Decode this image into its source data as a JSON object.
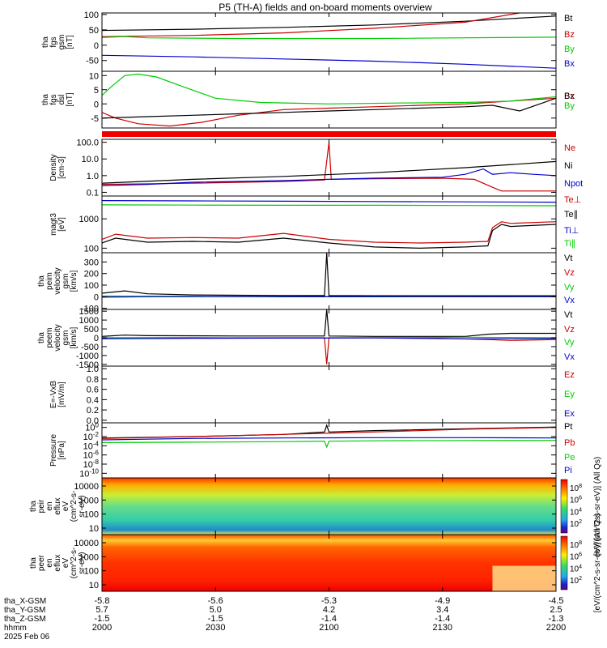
{
  "title": "P5 (TH-A) fields and on-board moments overview",
  "chart_data": [
    {
      "type": "line",
      "id": "fgs_gsm",
      "ylabel": [
        "tha",
        "fgs",
        "gsm",
        "[nT]"
      ],
      "yticks": [
        100,
        50,
        0,
        -50
      ],
      "ylim": [
        -85,
        105
      ],
      "log": false,
      "series": [
        {
          "name": "Bt",
          "color": "#000000",
          "x": [
            0,
            0.2,
            0.4,
            0.6,
            0.8,
            1.0
          ],
          "y": [
            48,
            52,
            58,
            66,
            78,
            95
          ]
        },
        {
          "name": "Bz",
          "color": "#cc0000",
          "x": [
            0,
            0.2,
            0.4,
            0.6,
            0.8,
            0.92
          ],
          "y": [
            28,
            32,
            40,
            55,
            75,
            105
          ]
        },
        {
          "name": "By",
          "color": "#00cc00",
          "x": [
            0,
            0.05,
            0.1,
            0.3,
            0.6,
            1.0
          ],
          "y": [
            25,
            28,
            24,
            22,
            22,
            26
          ]
        },
        {
          "name": "Bx",
          "color": "#0000cc",
          "x": [
            0,
            0.2,
            0.4,
            0.6,
            0.8,
            1.0
          ],
          "y": [
            -33,
            -38,
            -45,
            -52,
            -62,
            -75
          ]
        }
      ]
    },
    {
      "type": "line",
      "id": "fgs_dsl",
      "ylabel": [
        "tha",
        "fgs",
        "dsl",
        "[nT]"
      ],
      "yticks": [
        10,
        5,
        0,
        -5
      ],
      "ylim": [
        -8.5,
        11.5
      ],
      "log": false,
      "series": [
        {
          "name": "Bz",
          "color": "#cc0000",
          "x": [
            0,
            0.03,
            0.08,
            0.15,
            0.22,
            0.3,
            0.4,
            0.5,
            0.6,
            0.7,
            0.8,
            0.9,
            1.0
          ],
          "y": [
            -3,
            -5,
            -7,
            -7.8,
            -6.5,
            -4,
            -2,
            -1.5,
            -1,
            -0.5,
            0,
            1,
            2
          ]
        },
        {
          "name": "By",
          "color": "#00cc00",
          "x": [
            0,
            0.02,
            0.05,
            0.08,
            0.12,
            0.18,
            0.25,
            0.35,
            0.5,
            0.65,
            0.8,
            0.9,
            1.0
          ],
          "y": [
            3,
            6,
            10,
            10.5,
            9.5,
            6,
            2,
            0.5,
            0,
            0.3,
            0.5,
            1,
            2.5
          ]
        },
        {
          "name": "Bx",
          "color": "#000000",
          "x": [
            0,
            0.1,
            0.2,
            0.3,
            0.4,
            0.5,
            0.6,
            0.7,
            0.8,
            0.86,
            0.92,
            1.0
          ],
          "y": [
            -5,
            -4.5,
            -4,
            -3.5,
            -3,
            -2.5,
            -2,
            -1.5,
            -1,
            -0.5,
            -2.5,
            2
          ]
        }
      ]
    },
    {
      "type": "line",
      "id": "density",
      "ylabel": [
        "Density",
        "[cm-3]"
      ],
      "yticks": [
        "100.0",
        "10.0",
        "1.0",
        "0.1"
      ],
      "ytick_values": [
        100,
        10,
        1,
        0.1
      ],
      "ylim": [
        0.06,
        150
      ],
      "log": true,
      "series": [
        {
          "name": "Ne",
          "color": "#cc0000",
          "x": [
            0,
            0.2,
            0.4,
            0.49,
            0.5,
            0.505,
            0.6,
            0.75,
            0.82,
            0.86,
            0.88,
            1.0
          ],
          "y": [
            0.3,
            0.35,
            0.45,
            0.55,
            100,
            0.6,
            0.65,
            0.7,
            0.6,
            0.2,
            0.12,
            0.12
          ]
        },
        {
          "name": "Ni",
          "color": "#000000",
          "x": [
            0,
            0.2,
            0.4,
            0.6,
            0.8,
            1.0
          ],
          "y": [
            0.35,
            0.6,
            0.9,
            1.5,
            3,
            7
          ]
        },
        {
          "name": "Npot",
          "color": "#0000cc",
          "x": [
            0,
            0.1,
            0.2,
            0.4,
            0.5,
            0.6,
            0.75,
            0.8,
            0.84,
            0.86,
            0.9,
            0.95,
            1.0
          ],
          "y": [
            0.25,
            0.3,
            0.4,
            0.5,
            0.6,
            0.7,
            0.8,
            1.2,
            2.5,
            1.2,
            1.5,
            1.2,
            1.0
          ]
        }
      ]
    },
    {
      "type": "line",
      "id": "temperature",
      "ylabel": [
        "magt3",
        "[eV]"
      ],
      "yticks": [
        "1000",
        "100"
      ],
      "ytick_values": [
        1000,
        100
      ],
      "ylim": [
        70,
        6000
      ],
      "log": true,
      "series": [
        {
          "name": "Te⊥",
          "color": "#cc0000",
          "x": [
            0,
            0.03,
            0.1,
            0.2,
            0.3,
            0.4,
            0.5,
            0.6,
            0.7,
            0.8,
            0.85,
            0.86,
            0.88,
            0.9,
            1.0
          ],
          "y": [
            200,
            300,
            220,
            230,
            220,
            320,
            200,
            160,
            150,
            160,
            170,
            500,
            800,
            700,
            800
          ]
        },
        {
          "name": "Te∥",
          "color": "#000000",
          "x": [
            0,
            0.03,
            0.1,
            0.2,
            0.3,
            0.4,
            0.5,
            0.6,
            0.7,
            0.8,
            0.85,
            0.86,
            0.88,
            0.9,
            1.0
          ],
          "y": [
            150,
            220,
            160,
            170,
            160,
            220,
            150,
            110,
            100,
            110,
            120,
            400,
            650,
            550,
            650
          ]
        },
        {
          "name": "Ti⊥",
          "color": "#0000cc",
          "x": [
            0,
            0.2,
            0.4,
            0.6,
            0.8,
            1.0
          ],
          "y": [
            4200,
            4100,
            4000,
            3900,
            3800,
            3700
          ]
        },
        {
          "name": "Ti∥",
          "color": "#00cc00",
          "x": [
            0,
            0.2,
            0.4,
            0.6,
            0.8,
            1.0
          ],
          "y": [
            3000,
            2950,
            2900,
            2900,
            2850,
            2800
          ]
        }
      ]
    },
    {
      "type": "line",
      "id": "peim_velocity",
      "ylabel": [
        "tha",
        "peim",
        "velocity",
        "gsm",
        "[km/s]"
      ],
      "yticks": [
        300,
        200,
        100,
        0,
        -100
      ],
      "ylim": [
        -110,
        380
      ],
      "log": false,
      "series": [
        {
          "name": "Vt",
          "color": "#000000",
          "x": [
            0,
            0.05,
            0.1,
            0.2,
            0.4,
            0.49,
            0.495,
            0.5,
            0.6,
            0.8,
            1.0
          ],
          "y": [
            30,
            50,
            25,
            15,
            10,
            10,
            380,
            10,
            8,
            8,
            8
          ]
        },
        {
          "name": "Vz",
          "color": "#cc0000",
          "x": [
            0,
            0.1,
            0.3,
            0.5,
            0.7,
            1.0
          ],
          "y": [
            -5,
            0,
            2,
            0,
            2,
            0
          ]
        },
        {
          "name": "Vy",
          "color": "#00cc00",
          "x": [
            0,
            0.2,
            0.4,
            0.6,
            0.8,
            1.0
          ],
          "y": [
            -2,
            0,
            1,
            -1,
            0,
            0
          ]
        },
        {
          "name": "Vx",
          "color": "#0000cc",
          "x": [
            0,
            0.2,
            0.4,
            0.6,
            0.8,
            1.0
          ],
          "y": [
            3,
            2,
            0,
            1,
            0,
            0
          ]
        }
      ]
    },
    {
      "type": "line",
      "id": "peem_velocity",
      "ylabel": [
        "tha",
        "peem",
        "velocity",
        "gsm",
        "[km/s]"
      ],
      "yticks": [
        1500,
        1000,
        500,
        0,
        -500,
        -1000,
        -1500
      ],
      "ylim": [
        -1600,
        1600
      ],
      "log": false,
      "series": [
        {
          "name": "Vt",
          "color": "#000000",
          "x": [
            0,
            0.05,
            0.1,
            0.3,
            0.49,
            0.495,
            0.5,
            0.6,
            0.8,
            0.85,
            0.9,
            1.0
          ],
          "y": [
            80,
            150,
            120,
            100,
            100,
            1600,
            100,
            80,
            80,
            200,
            250,
            250
          ]
        },
        {
          "name": "Vz",
          "color": "#cc0000",
          "x": [
            0,
            0.1,
            0.3,
            0.49,
            0.495,
            0.5,
            0.7,
            0.85,
            0.9,
            1.0
          ],
          "y": [
            0,
            -40,
            0,
            0,
            -1500,
            0,
            0,
            -100,
            -150,
            -100
          ]
        },
        {
          "name": "Vy",
          "color": "#00cc00",
          "x": [
            0,
            0.2,
            0.4,
            0.6,
            0.8,
            1.0
          ],
          "y": [
            0,
            20,
            -20,
            0,
            30,
            0
          ]
        },
        {
          "name": "Vx",
          "color": "#0000cc",
          "x": [
            0,
            0.2,
            0.4,
            0.6,
            0.8,
            1.0
          ],
          "y": [
            -50,
            -30,
            -20,
            -10,
            -60,
            -40
          ]
        }
      ]
    },
    {
      "type": "line",
      "id": "efield",
      "ylabel": [
        "E=-VxB",
        "[mV/m]"
      ],
      "yticks": [
        "1.0",
        "0.8",
        "0.6",
        "0.4",
        "0.2",
        "0.0"
      ],
      "ytick_values": [
        1.0,
        0.8,
        0.6,
        0.4,
        0.2,
        0.0
      ],
      "ylim": [
        -0.05,
        1.05
      ],
      "log": false,
      "series": [
        {
          "name": "Ez",
          "color": "#cc0000",
          "x": [],
          "y": []
        },
        {
          "name": "Ey",
          "color": "#00cc00",
          "x": [],
          "y": []
        },
        {
          "name": "Ex",
          "color": "#0000cc",
          "x": [],
          "y": []
        }
      ]
    },
    {
      "type": "line",
      "id": "pressure",
      "ylabel": [
        "Pressure",
        "[nPa]"
      ],
      "yticks": [
        "10^0",
        "10^-2",
        "10^-4",
        "10^-6",
        "10^-8",
        "10^-10"
      ],
      "ytick_values": [
        1,
        0.01,
        0.0001,
        1e-06,
        1e-08,
        1e-10
      ],
      "ylim": [
        1e-11,
        10
      ],
      "log": true,
      "series": [
        {
          "name": "Pt",
          "color": "#000000",
          "x": [
            0,
            0.2,
            0.4,
            0.49,
            0.495,
            0.5,
            0.6,
            0.8,
            1.0
          ],
          "y": [
            0.005,
            0.01,
            0.03,
            0.1,
            3,
            0.1,
            0.2,
            0.5,
            1.2
          ]
        },
        {
          "name": "Pb",
          "color": "#cc0000",
          "x": [
            0,
            0.2,
            0.4,
            0.6,
            0.8,
            1.0
          ],
          "y": [
            0.004,
            0.01,
            0.03,
            0.1,
            0.4,
            1.0
          ]
        },
        {
          "name": "Pe",
          "color": "#00cc00",
          "x": [
            0,
            0.2,
            0.4,
            0.49,
            0.495,
            0.5,
            0.6,
            0.8,
            1.0
          ],
          "y": [
            0.0005,
            0.0006,
            0.0008,
            0.001,
            5e-05,
            0.001,
            0.0012,
            0.0014,
            0.0015
          ]
        },
        {
          "name": "Pi",
          "color": "#0000cc",
          "x": [
            0,
            0.2,
            0.4,
            0.6,
            0.8,
            1.0
          ],
          "y": [
            0.002,
            0.004,
            0.005,
            0.006,
            0.006,
            0.005
          ]
        }
      ]
    },
    {
      "type": "heatmap",
      "id": "peir_en_eflux",
      "ylabel": [
        "tha",
        "peir",
        "en",
        "eflux",
        "eV",
        "(cm^2-s-",
        "sr-eV)"
      ],
      "yticks": [
        "10000",
        "1000",
        "100",
        "10"
      ],
      "colorbar_ticks": [
        "10^8",
        "10^6",
        "10^4",
        "10^2"
      ],
      "colorbar_label": "[eV/(cm^2-s-sr-eV)] (All Qs)",
      "log": true
    },
    {
      "type": "heatmap",
      "id": "peer_en_eflux",
      "ylabel": [
        "tha",
        "peer",
        "en",
        "eflux",
        "eV",
        "(cm^2-s-",
        "sr-eV)"
      ],
      "yticks": [
        "10000",
        "1000",
        "100",
        "10"
      ],
      "colorbar_ticks": [
        "10^8",
        "10^6",
        "10^4",
        "10^2"
      ],
      "colorbar_label": "[eV/(cm^2-s-sr-eV)] (All Qs)",
      "log": true
    }
  ],
  "xaxis": {
    "ticks": [
      {
        "x": 0.0,
        "values": [
          "-5.8",
          "5.7",
          "-1.5",
          "2000"
        ]
      },
      {
        "x": 0.25,
        "values": [
          "-5.6",
          "5.0",
          "-1.5",
          "2030"
        ]
      },
      {
        "x": 0.5,
        "values": [
          "-5.3",
          "4.2",
          "-1.4",
          "2100"
        ]
      },
      {
        "x": 0.75,
        "values": [
          "-4.9",
          "3.4",
          "-1.4",
          "2130"
        ]
      },
      {
        "x": 1.0,
        "values": [
          "-4.5",
          "2.5",
          "-1.3",
          "2200"
        ]
      }
    ],
    "row_labels": [
      "tha_X-GSM",
      "tha_Y-GSM",
      "tha_Z-GSM",
      "hhmm"
    ],
    "date": "2025 Feb 06"
  }
}
